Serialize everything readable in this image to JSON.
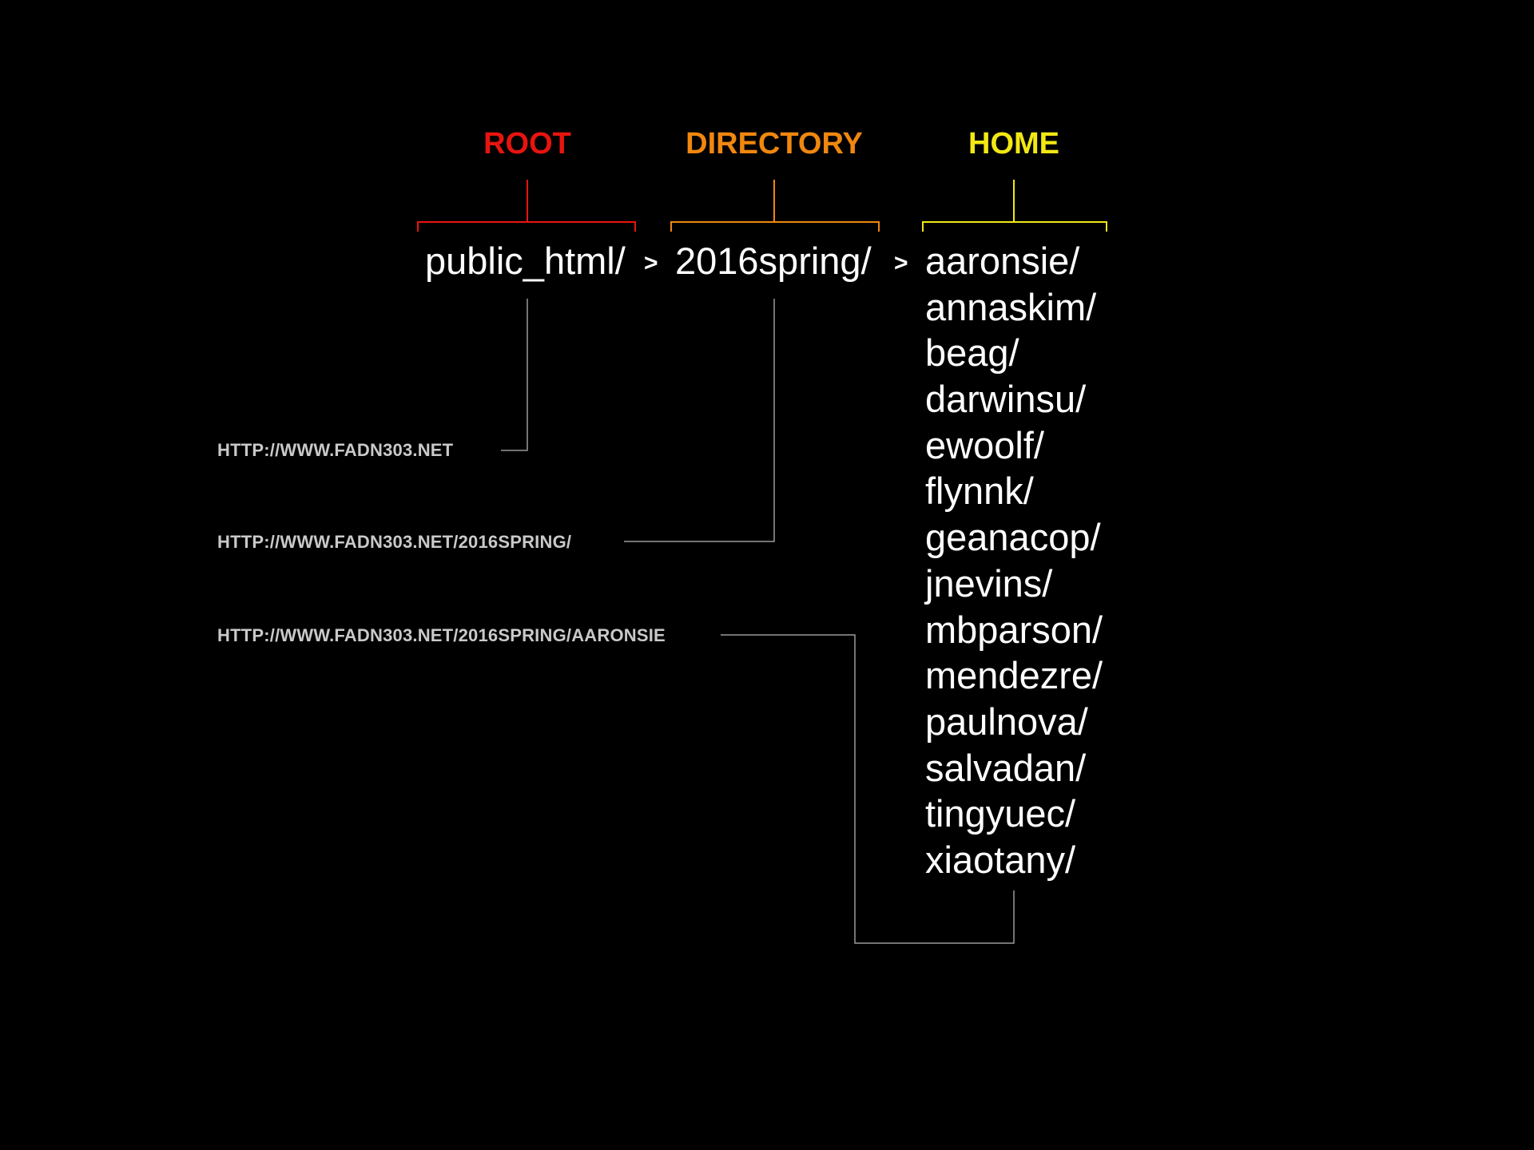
{
  "labels": {
    "root": "ROOT",
    "directory": "DIRECTORY",
    "home": "HOME"
  },
  "path": {
    "root": "public_html/",
    "directory": "2016spring/",
    "separator": ">"
  },
  "home_items": [
    "aaronsie/",
    "annaskim/",
    "beag/",
    "darwinsu/",
    "ewoolf/",
    "flynnk/",
    "geanacop/",
    "jnevins/",
    "mbparson/",
    "mendezre/",
    "paulnova/",
    "salvadan/",
    "tingyuec/",
    "xiaotany/"
  ],
  "urls": {
    "root_url": "HTTP://WWW.FADN303.NET",
    "directory_url": "HTTP://WWW.FADN303.NET/2016SPRING/",
    "home_url": "HTTP://WWW.FADN303.NET/2016SPRING/AARONSIE"
  },
  "colors": {
    "root": "#e8140f",
    "directory": "#f0870f",
    "home": "#f2e814",
    "connector": "#9a9a9a",
    "background": "#000000"
  }
}
